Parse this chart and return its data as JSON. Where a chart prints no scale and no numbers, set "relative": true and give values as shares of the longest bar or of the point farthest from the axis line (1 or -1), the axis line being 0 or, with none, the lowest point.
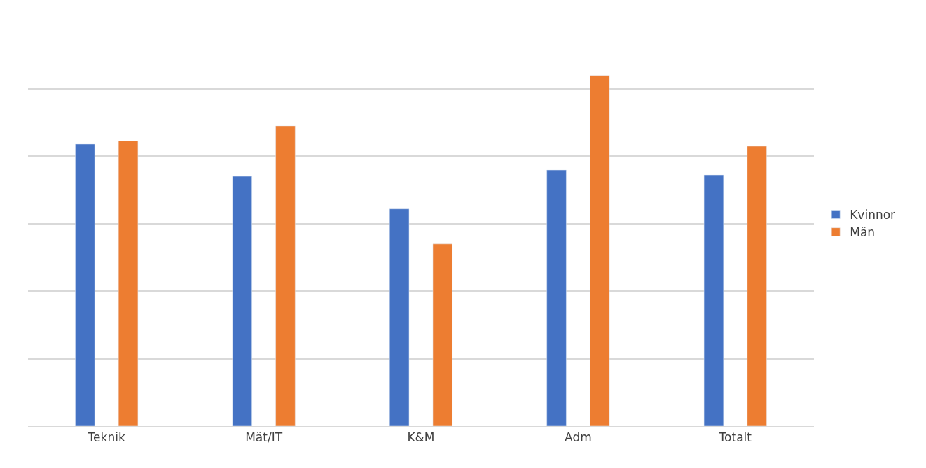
{
  "chart_data": {
    "type": "bar",
    "relative": true,
    "categories": [
      "Teknik",
      "Mät/IT",
      "K&M",
      "Adm",
      "Totalt"
    ],
    "series": [
      {
        "name": "Kvinnor",
        "color": "#4472c4",
        "values": [
          0.804,
          0.712,
          0.619,
          0.73,
          0.716
        ]
      },
      {
        "name": "Män",
        "color": "#ed7d31",
        "values": [
          0.813,
          0.856,
          0.519,
          1.0,
          0.798
        ]
      }
    ],
    "grid": "y",
    "legend": "right"
  }
}
